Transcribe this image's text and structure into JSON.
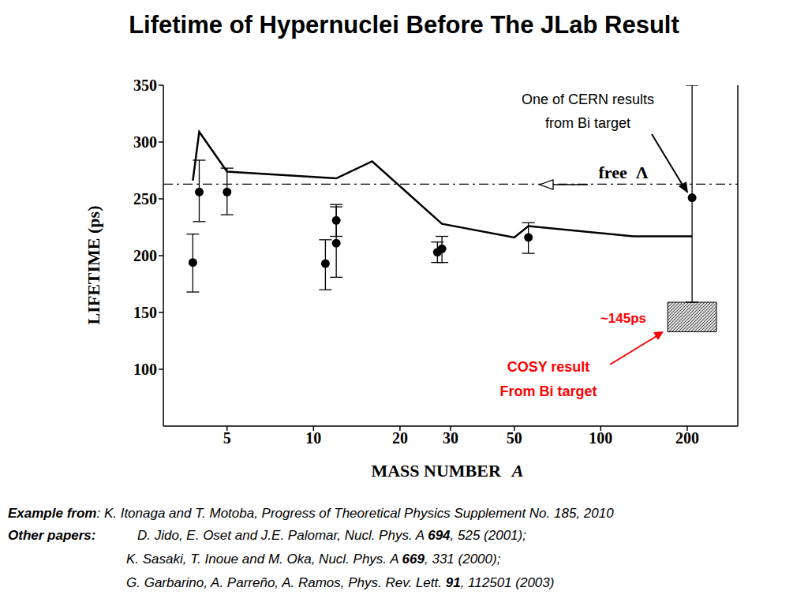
{
  "chart_data": {
    "type": "scatter",
    "title": "Lifetime of Hypernuclei Before The JLab Result",
    "x_label": "MASS NUMBER A",
    "y_label": "LIFETIME (ps)",
    "log": "x",
    "xlim": [
      3,
      300
    ],
    "xticks": [
      5,
      10,
      20,
      30,
      50,
      100,
      200
    ],
    "ylim": [
      50,
      350
    ],
    "yticks": [
      100,
      150,
      200,
      250,
      300,
      350
    ],
    "grid": false,
    "series": [
      {
        "type": "scatter",
        "color": "#000000",
        "marker": "circle",
        "x": [
          3.8,
          4,
          5,
          11,
          12,
          12,
          27,
          28,
          56,
          208
        ],
        "values": [
          194,
          256,
          256,
          193,
          231,
          211,
          203,
          206,
          216,
          251
        ],
        "error_low": [
          168,
          230,
          236,
          170,
          217,
          181,
          194,
          194,
          202,
          159
        ],
        "error_high": [
          219,
          284,
          277,
          214,
          245,
          243,
          212,
          217,
          229,
          350
        ]
      },
      {
        "type": "line",
        "color": "#000000",
        "line_style": "solid",
        "x": [
          3.8,
          4,
          5,
          12,
          16,
          28,
          50,
          56,
          130,
          208
        ],
        "values": [
          266,
          309,
          274,
          268,
          283,
          228,
          216,
          226,
          217,
          217
        ]
      }
    ],
    "free_lambda": {
      "label": "free  Λ",
      "value": 263,
      "line_style": "dashdot",
      "color": "#000000"
    },
    "cosy_box": {
      "x": [
        171,
        253
      ],
      "y": [
        133,
        159
      ]
    },
    "annotations": [
      {
        "lines": [
          "One of CERN results",
          "from Bi target"
        ],
        "color": "#000000"
      },
      {
        "lines": [
          "~145ps"
        ],
        "color": "#ff0000"
      },
      {
        "lines": [
          "COSY result",
          "From Bi target"
        ],
        "color": "#ff0000"
      }
    ]
  },
  "footer": {
    "example": [
      {
        "text": "Example from",
        "bold": true
      },
      {
        "text": ": K. Itonaga and T. Motoba, Progress of Theoretical Physics Supplement No. 185, 2010"
      }
    ],
    "other_label": "Other papers:",
    "others": [
      [
        {
          "text": "D. Jido, E. Oset and J.E. Palomar, Nucl. Phys. A "
        },
        {
          "text": "694",
          "bold": true
        },
        {
          "text": ", 525 (2001);"
        }
      ],
      [
        {
          "text": "K. Sasaki, T. Inoue and M. Oka, Nucl. Phys. A "
        },
        {
          "text": "669",
          "bold": true
        },
        {
          "text": ", 331 (2000);"
        }
      ],
      [
        {
          "text": "G. Garbarino, A. Parreño, A. Ramos, Phys. Rev. Lett. "
        },
        {
          "text": "91",
          "bold": true
        },
        {
          "text": ", 112501 (2003)"
        }
      ]
    ]
  }
}
